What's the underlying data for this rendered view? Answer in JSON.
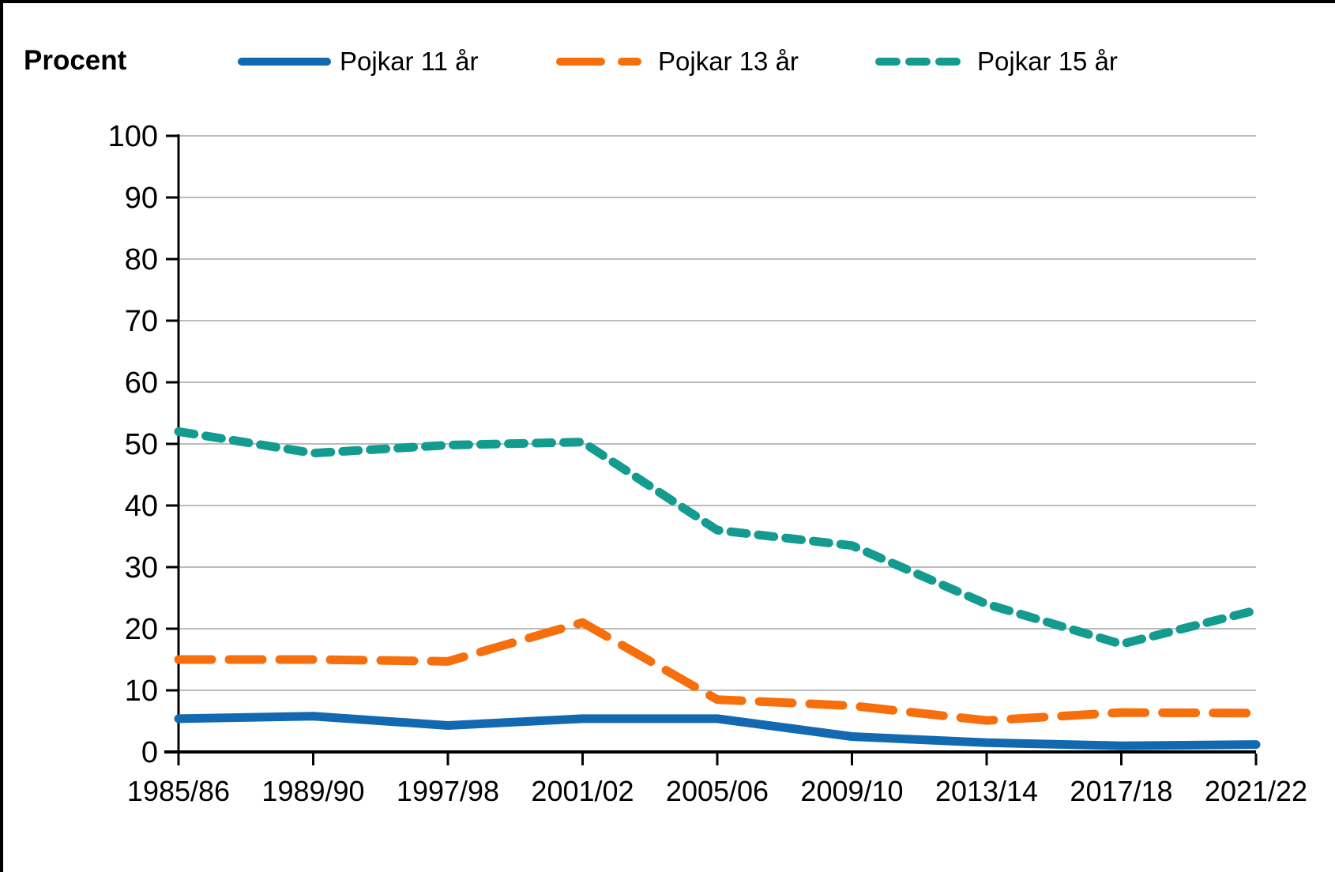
{
  "frame": {
    "background": "#ffffff",
    "border_color": "#000000",
    "grid_color": "#a6a6a6",
    "axis_color": "#000000",
    "text_color": "#000000"
  },
  "header": {
    "y_axis_title": "Procent"
  },
  "chart_data": {
    "type": "line",
    "categories": [
      "1985/86",
      "1989/90",
      "1997/98",
      "2001/02",
      "2005/06",
      "2009/10",
      "2013/14",
      "2017/18",
      "2021/22"
    ],
    "series": [
      {
        "name": "Pojkar 11 år",
        "color": "#1269B0",
        "dash": "solid",
        "values": [
          5.4,
          5.8,
          4.3,
          5.4,
          5.4,
          2.5,
          1.5,
          1.0,
          1.2
        ]
      },
      {
        "name": "Pojkar 13 år",
        "color": "#F76F0C",
        "dash": "long-dash",
        "values": [
          15,
          15,
          14.7,
          21,
          8.5,
          7.5,
          5.1,
          6.4,
          6.3
        ]
      },
      {
        "name": "Pojkar 15 år",
        "color": "#149B8F",
        "dash": "short-dash",
        "values": [
          52,
          48.5,
          49.8,
          50.3,
          36,
          33.5,
          24,
          17.5,
          23
        ]
      }
    ],
    "title": "",
    "xlabel": "",
    "ylabel": "Procent",
    "ylim": [
      0,
      100
    ],
    "y_ticks": [
      0,
      10,
      20,
      30,
      40,
      50,
      60,
      70,
      80,
      90,
      100
    ],
    "grid": true,
    "legend_position": "top"
  }
}
